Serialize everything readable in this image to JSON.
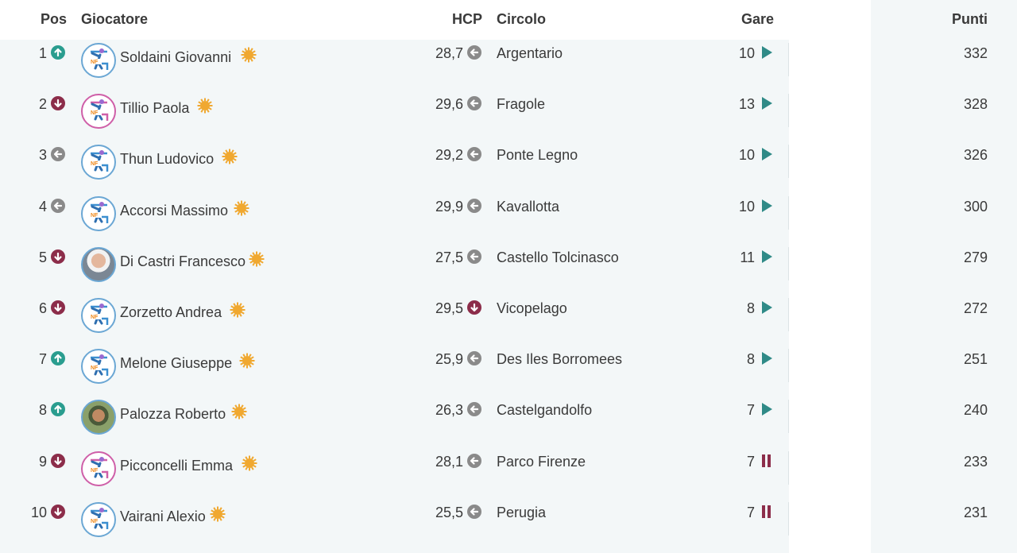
{
  "headers": {
    "pos": "Pos",
    "giocatore": "Giocatore",
    "hcp": "HCP",
    "circolo": "Circolo",
    "gare": "Gare",
    "punti": "Punti"
  },
  "colors": {
    "trend_up": "#2a9d8f",
    "trend_down": "#8c2d4a",
    "trend_same": "#8a8a8a",
    "play": "#2f8a87",
    "pause": "#8c2d4a",
    "badge_sun": "#f0a830"
  },
  "rows": [
    {
      "pos": "1",
      "trend": "up-arrow-icon",
      "name": "Soldaini Giovanni",
      "avatar": "golfer-logo-blue",
      "hcp": "28,7",
      "hcp_trend": "left-arrow-icon",
      "circolo": "Argentario",
      "gare": "10",
      "gare_status": "play-icon",
      "punti": "332"
    },
    {
      "pos": "2",
      "trend": "down-arrow-icon",
      "name": "Tillio Paola",
      "avatar": "golfer-logo-pink",
      "hcp": "29,6",
      "hcp_trend": "left-arrow-icon",
      "circolo": "Fragole",
      "gare": "13",
      "gare_status": "play-icon",
      "punti": "328"
    },
    {
      "pos": "3",
      "trend": "left-arrow-icon",
      "name": "Thun Ludovico",
      "avatar": "golfer-logo-blue",
      "hcp": "29,2",
      "hcp_trend": "left-arrow-icon",
      "circolo": "Ponte Legno",
      "gare": "10",
      "gare_status": "play-icon",
      "punti": "326"
    },
    {
      "pos": "4",
      "trend": "left-arrow-icon",
      "name": "Accorsi Massimo",
      "avatar": "golfer-logo-blue",
      "hcp": "29,9",
      "hcp_trend": "left-arrow-icon",
      "circolo": "Kavallotta",
      "gare": "10",
      "gare_status": "play-icon",
      "punti": "300"
    },
    {
      "pos": "5",
      "trend": "down-arrow-icon",
      "name": "Di Castri Francesco",
      "avatar": "photo",
      "hcp": "27,5",
      "hcp_trend": "left-arrow-icon",
      "circolo": "Castello Tolcinasco",
      "gare": "11",
      "gare_status": "play-icon",
      "punti": "279"
    },
    {
      "pos": "6",
      "trend": "down-arrow-icon",
      "name": "Zorzetto Andrea",
      "avatar": "golfer-logo-blue",
      "hcp": "29,5",
      "hcp_trend": "down-arrow-icon",
      "circolo": "Vicopelago",
      "gare": "8",
      "gare_status": "play-icon",
      "punti": "272"
    },
    {
      "pos": "7",
      "trend": "up-arrow-icon",
      "name": "Melone Giuseppe",
      "avatar": "golfer-logo-blue",
      "hcp": "25,9",
      "hcp_trend": "left-arrow-icon",
      "circolo": "Des Iles Borromees",
      "gare": "8",
      "gare_status": "play-icon",
      "punti": "251"
    },
    {
      "pos": "8",
      "trend": "up-arrow-icon",
      "name": "Palozza Roberto",
      "avatar": "photo",
      "hcp": "26,3",
      "hcp_trend": "left-arrow-icon",
      "circolo": "Castelgandolfo",
      "gare": "7",
      "gare_status": "play-icon",
      "punti": "240"
    },
    {
      "pos": "9",
      "trend": "down-arrow-icon",
      "name": "Picconcelli Emma",
      "avatar": "golfer-logo-pink",
      "hcp": "28,1",
      "hcp_trend": "left-arrow-icon",
      "circolo": "Parco Firenze",
      "gare": "7",
      "gare_status": "pause-icon",
      "punti": "233"
    },
    {
      "pos": "10",
      "trend": "down-arrow-icon",
      "name": "Vairani Alexio",
      "avatar": "golfer-logo-blue",
      "hcp": "25,5",
      "hcp_trend": "left-arrow-icon",
      "circolo": "Perugia",
      "gare": "7",
      "gare_status": "pause-icon",
      "punti": "231"
    }
  ]
}
